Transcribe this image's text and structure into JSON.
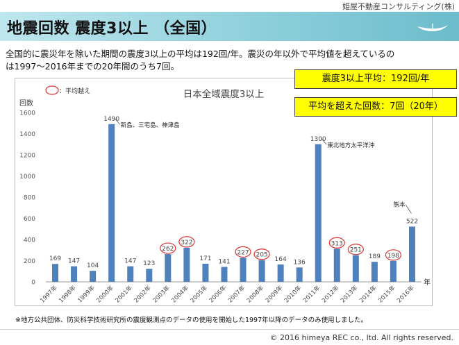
{
  "header": {
    "company": "姫屋不動産コンサルティング(株)",
    "title": "地震回数 震度3以上 （全国）"
  },
  "description": {
    "line1": "全国的に震災年を除いた期間の震度3以上の平均は192回/年。震災の年以外で平均値を超えているの",
    "line2": "は1997～2016年までの20年間のうち7回。"
  },
  "callouts": {
    "average": "震度3以上平均：192回/年",
    "above_count": "平均を超えた回数：7回（20年）"
  },
  "chart_data": {
    "type": "bar",
    "title": "日本全域震度3以上",
    "ylabel": "回数",
    "xlabel": "年",
    "ylim": [
      0,
      1600
    ],
    "yticks": [
      "0",
      "200",
      "400",
      "600",
      "800",
      "1000",
      "1200",
      "1400",
      "1600"
    ],
    "categories": [
      "1997年",
      "1998年",
      "1999年",
      "2000年",
      "2001年",
      "2002年",
      "2003年",
      "2004年",
      "2005年",
      "2006年",
      "2007年",
      "2008年",
      "2009年",
      "2010年",
      "2011年",
      "2012年",
      "2013年",
      "2014年",
      "2015年",
      "2016年"
    ],
    "values": [
      169,
      147,
      104,
      1490,
      147,
      123,
      262,
      322,
      171,
      141,
      227,
      205,
      164,
      136,
      1300,
      313,
      251,
      189,
      198,
      522
    ],
    "value_labels": [
      "169",
      "147",
      "104",
      "1490",
      "147",
      "123",
      "262",
      "322",
      "171",
      "141",
      "227",
      "205",
      "164",
      "136",
      "1300",
      "313",
      "251",
      "189",
      "198",
      "522"
    ],
    "above_average": [
      false,
      false,
      false,
      false,
      false,
      false,
      true,
      true,
      false,
      false,
      true,
      true,
      false,
      false,
      false,
      true,
      true,
      false,
      true,
      false
    ],
    "annotations": [
      {
        "category": "2000年",
        "text": "新島、三宅島、神津島"
      },
      {
        "category": "2011年",
        "text": "東北地方太平洋沖"
      },
      {
        "category": "2016年",
        "text": "熊本"
      }
    ],
    "legend_text": "：平均越え",
    "legend_placement": "top-left",
    "grid": false,
    "colors": {
      "bar": "#4f81bd",
      "circle": "#e03030"
    }
  },
  "footnote": "※地方公共団体、防災科学技術研究所の震度観測点のデータの使用を開始した1997年以降のデータのみ使用しました。",
  "copyright": "©  2016 himeya REC co., ltd. All rights reserved."
}
